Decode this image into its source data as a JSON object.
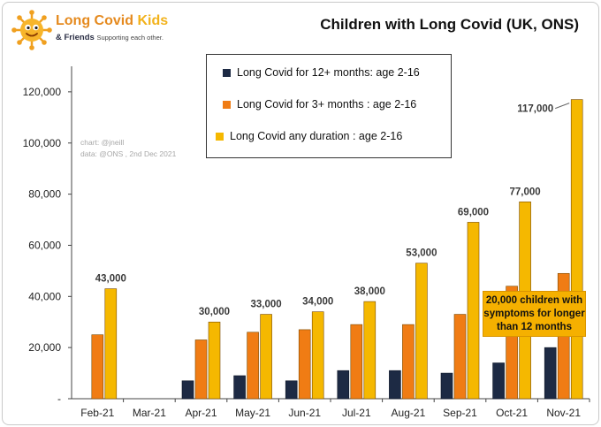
{
  "logo": {
    "title_main": "Long Covid",
    "title_accent": "Kids",
    "sub_main": "& Friends",
    "sub_tagline": "Supporting each other."
  },
  "chart_data": {
    "type": "bar",
    "title": "Children with Long Covid (UK, ONS)",
    "categories": [
      "Feb-21",
      "Mar-21",
      "Apr-21",
      "May-21",
      "Jun-21",
      "Jul-21",
      "Aug-21",
      "Sep-21",
      "Oct-21",
      "Nov-21"
    ],
    "series": [
      {
        "name": "Long Covid for 12+ months: age 2-16",
        "color": "#1d2a44",
        "values": [
          null,
          null,
          7000,
          9000,
          7000,
          11000,
          11000,
          10000,
          14000,
          20000
        ]
      },
      {
        "name": "Long Covid for 3+ months : age 2-16",
        "color": "#f07c14",
        "values": [
          25000,
          null,
          23000,
          26000,
          27000,
          29000,
          29000,
          33000,
          44000,
          49000
        ]
      },
      {
        "name": "Long Covid any duration : age 2-16",
        "color": "#f5b800",
        "values": [
          43000,
          null,
          30000,
          33000,
          34000,
          38000,
          53000,
          69000,
          77000,
          117000
        ]
      }
    ],
    "data_labels": {
      "series": "Long Covid any duration : age 2-16",
      "text": [
        "43,000",
        "",
        "30,000",
        "33,000",
        "34,000",
        "38,000",
        "53,000",
        "69,000",
        "77,000",
        "117,000"
      ]
    },
    "ylim": [
      0,
      130000
    ],
    "yticks": [
      0,
      20000,
      40000,
      60000,
      80000,
      100000,
      120000
    ],
    "ytick_labels": [
      "-",
      "20,000",
      "40,000",
      "60,000",
      "80,000",
      "100,000",
      "120,000"
    ],
    "xlabel": "",
    "ylabel": "",
    "grid": false,
    "legend_position": "top-center",
    "credit_lines": [
      "chart: @jneill",
      "data: @ONS , 2nd Dec 2021"
    ],
    "annotation": "20,000 children with symptoms for longer than 12 months"
  }
}
